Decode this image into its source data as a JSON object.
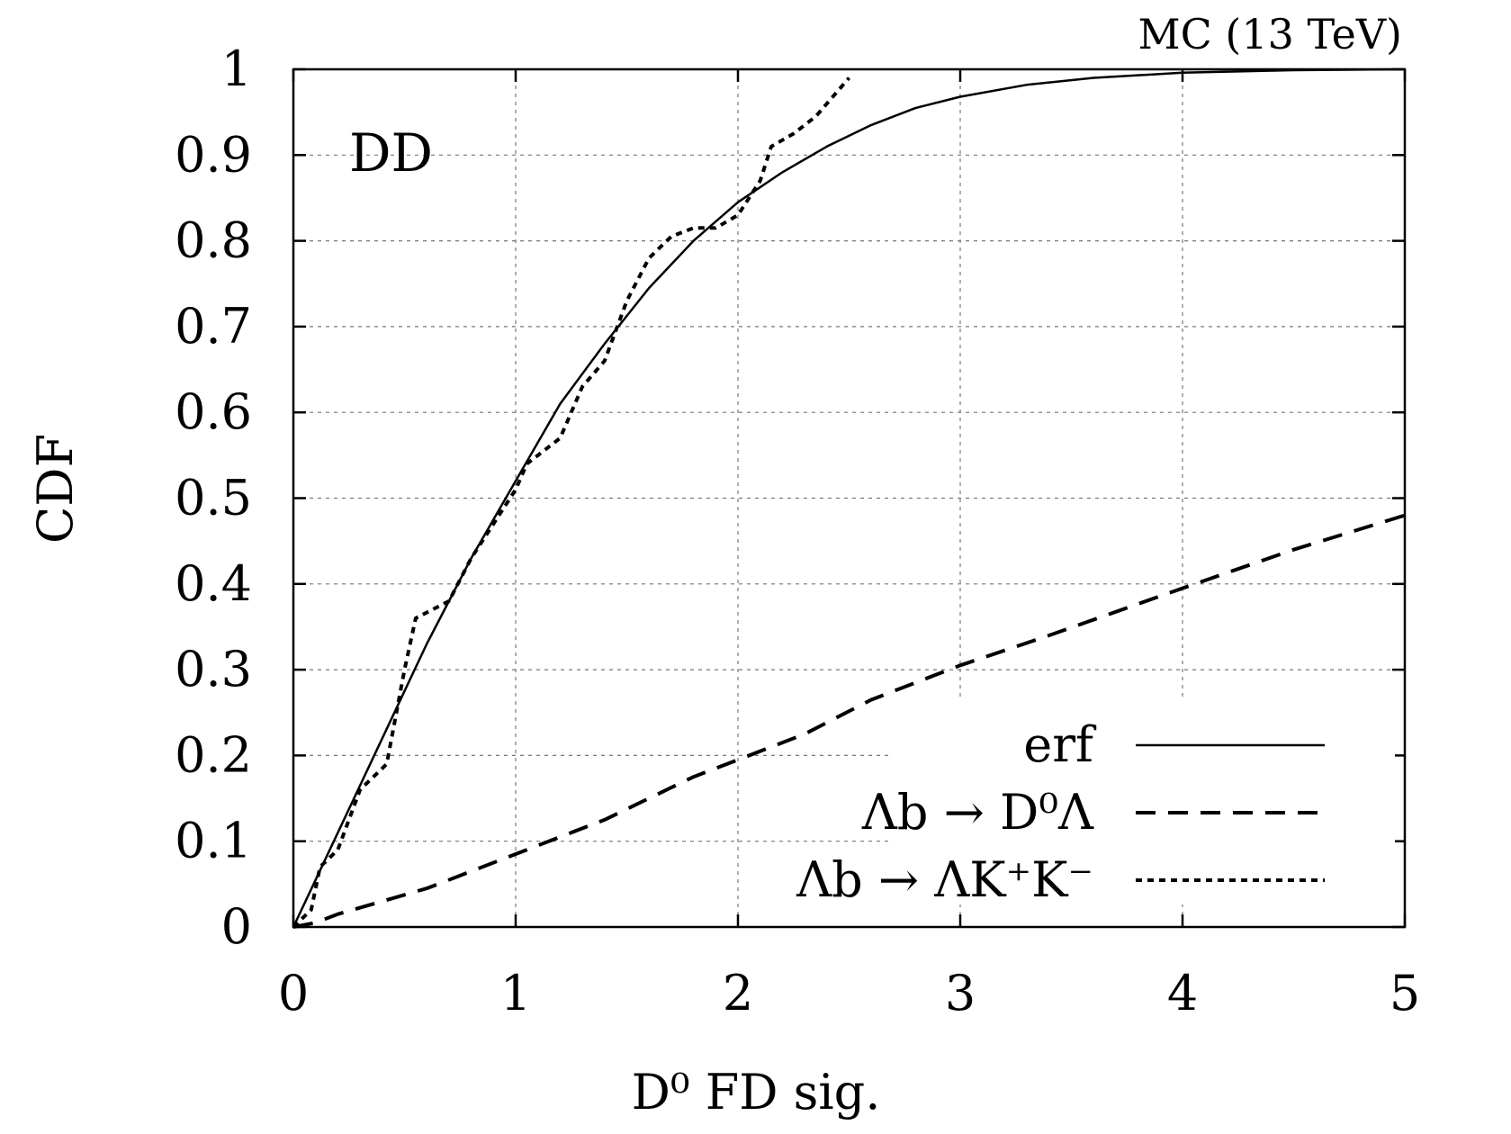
{
  "chart_data": {
    "type": "line",
    "annotation_top_right": "MC (13 TeV)",
    "annotation_top_left": "DD",
    "xlabel": "D⁰ FD sig.",
    "ylabel": "CDF",
    "xlim": [
      0,
      5
    ],
    "ylim": [
      0,
      1
    ],
    "x_ticks": [
      0,
      1,
      2,
      3,
      4,
      5
    ],
    "x_tick_labels": [
      "0",
      "1",
      "2",
      "3",
      "4",
      "5"
    ],
    "y_ticks": [
      0,
      0.1,
      0.2,
      0.3,
      0.4,
      0.5,
      0.6,
      0.7,
      0.8,
      0.9,
      1
    ],
    "y_tick_labels": [
      "0",
      "0.1",
      "0.2",
      "0.3",
      "0.4",
      "0.5",
      "0.6",
      "0.7",
      "0.8",
      "0.9",
      "1"
    ],
    "grid": true,
    "legend_position": "bottom-right",
    "series": [
      {
        "name": "erf",
        "style": "solid",
        "x": [
          0,
          0.2,
          0.4,
          0.6,
          0.8,
          1.0,
          1.2,
          1.4,
          1.6,
          1.8,
          2.0,
          2.2,
          2.4,
          2.6,
          2.8,
          3.0,
          3.3,
          3.6,
          4.0,
          4.5,
          5.0
        ],
        "y": [
          0,
          0.11,
          0.22,
          0.33,
          0.43,
          0.52,
          0.61,
          0.68,
          0.745,
          0.8,
          0.845,
          0.88,
          0.91,
          0.935,
          0.955,
          0.968,
          0.982,
          0.99,
          0.996,
          0.999,
          1.0
        ]
      },
      {
        "name": "Λb → D⁰Λ",
        "style": "dashed",
        "x": [
          0,
          0.1,
          0.2,
          0.4,
          0.6,
          0.8,
          1.0,
          1.2,
          1.4,
          1.6,
          1.8,
          2.0,
          2.3,
          2.6,
          3.0,
          3.4,
          4.0,
          4.5,
          5.0
        ],
        "y": [
          0,
          0.005,
          0.015,
          0.03,
          0.045,
          0.065,
          0.085,
          0.105,
          0.125,
          0.15,
          0.175,
          0.195,
          0.225,
          0.265,
          0.305,
          0.34,
          0.395,
          0.44,
          0.48
        ]
      },
      {
        "name": "Λb → ΛK⁺K⁻",
        "style": "dotted",
        "x": [
          0,
          0.08,
          0.12,
          0.2,
          0.3,
          0.42,
          0.5,
          0.55,
          0.7,
          0.8,
          0.9,
          1.0,
          1.05,
          1.2,
          1.3,
          1.4,
          1.5,
          1.6,
          1.7,
          1.8,
          1.9,
          2.0,
          2.1,
          2.15,
          2.25,
          2.35,
          2.45,
          2.5
        ],
        "y": [
          0,
          0.02,
          0.07,
          0.09,
          0.16,
          0.19,
          0.3,
          0.36,
          0.38,
          0.43,
          0.47,
          0.51,
          0.54,
          0.57,
          0.63,
          0.66,
          0.73,
          0.78,
          0.805,
          0.815,
          0.815,
          0.83,
          0.87,
          0.91,
          0.925,
          0.945,
          0.975,
          0.99
        ]
      }
    ]
  }
}
